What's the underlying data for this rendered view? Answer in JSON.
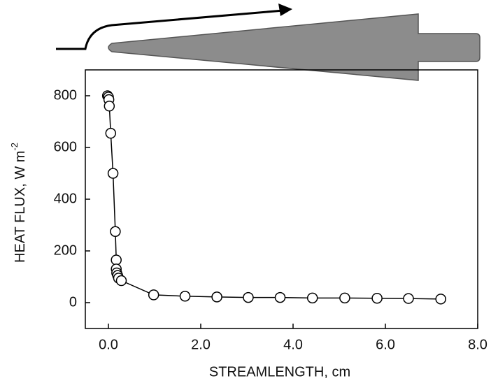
{
  "chart_data": {
    "type": "line",
    "x_label": "STREAMLENGTH, cm",
    "y_label": "HEAT FLUX, W m",
    "y_label_superscript": "-2",
    "x": [
      -0.02,
      0.0,
      0.01,
      0.02,
      0.05,
      0.1,
      0.15,
      0.17,
      0.17,
      0.18,
      0.2,
      0.22,
      0.28,
      0.98,
      1.66,
      2.35,
      3.03,
      3.72,
      4.42,
      5.12,
      5.82,
      6.5,
      7.2
    ],
    "values": [
      800,
      795,
      785,
      760,
      655,
      500,
      275,
      165,
      130,
      115,
      105,
      95,
      85,
      30,
      25,
      22,
      20,
      20,
      18,
      18,
      17,
      16,
      14
    ],
    "color": "#000000",
    "xlim": [
      -0.5,
      8.0
    ],
    "ylim": [
      -100,
      900
    ],
    "xticks": [
      {
        "value": 0,
        "label": "0.0"
      },
      {
        "value": 2,
        "label": "2.0"
      },
      {
        "value": 4,
        "label": "4.0"
      },
      {
        "value": 6,
        "label": "6.0"
      },
      {
        "value": 8,
        "label": "8.0"
      }
    ],
    "yticks": [
      0,
      200,
      400,
      600,
      800
    ]
  }
}
